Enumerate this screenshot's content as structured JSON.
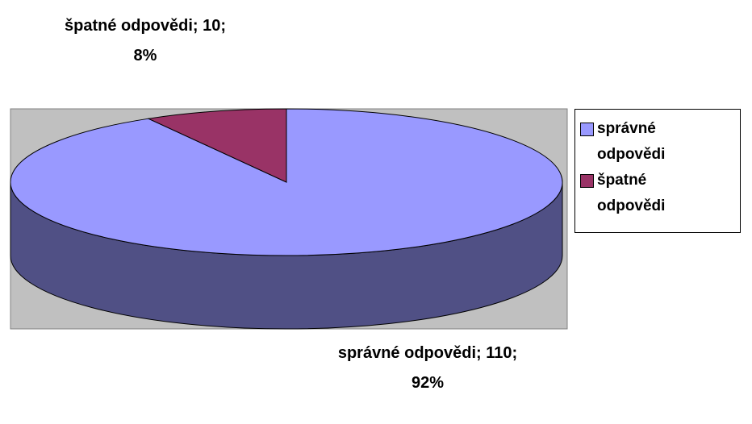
{
  "chart_data": {
    "type": "pie",
    "categories": [
      "správné odpovědi",
      "špatné odpovědi"
    ],
    "values": [
      110,
      10
    ],
    "value_labels": [
      "správné odpovědi; 110; 92%",
      "špatné odpovědi; 10; 8%"
    ],
    "colors": [
      "#9999ff",
      "#993366"
    ],
    "legend": "right"
  }
}
